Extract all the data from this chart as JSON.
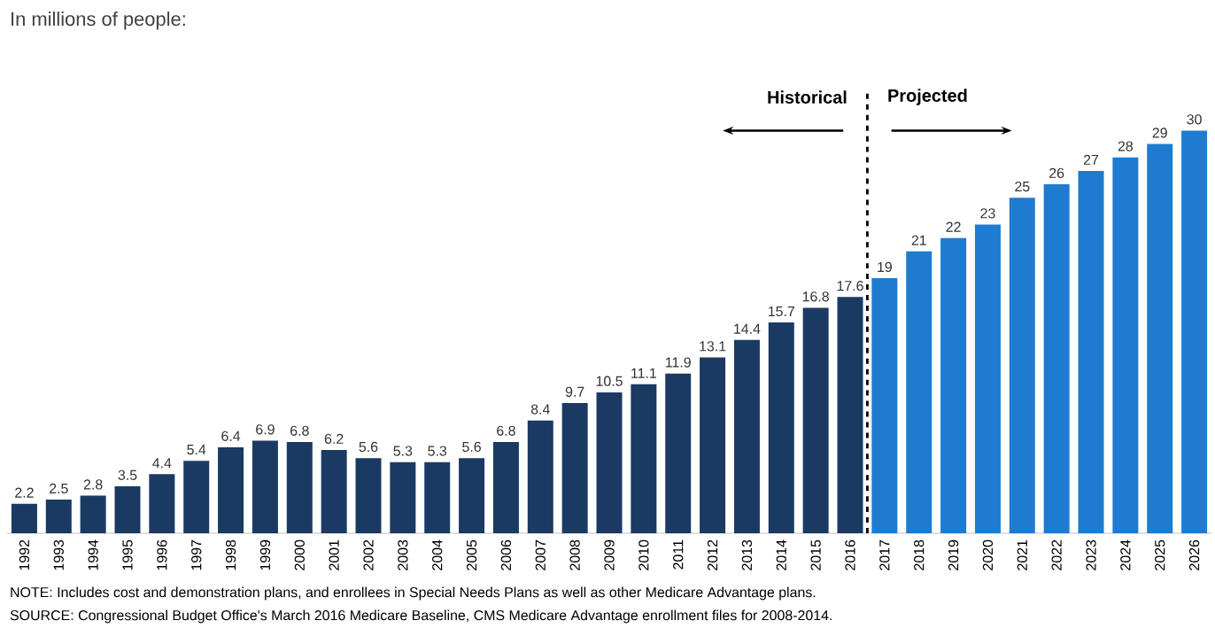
{
  "chart_data": {
    "type": "bar",
    "title": "In millions of people:",
    "x": [
      1992,
      1993,
      1994,
      1995,
      1996,
      1997,
      1998,
      1999,
      2000,
      2001,
      2002,
      2003,
      2004,
      2005,
      2006,
      2007,
      2008,
      2009,
      2010,
      2011,
      2012,
      2013,
      2014,
      2015,
      2016,
      2017,
      2018,
      2019,
      2020,
      2021,
      2022,
      2023,
      2024,
      2025,
      2026
    ],
    "values": [
      2.2,
      2.5,
      2.8,
      3.5,
      4.4,
      5.4,
      6.4,
      6.9,
      6.8,
      6.2,
      5.6,
      5.3,
      5.3,
      5.6,
      6.8,
      8.4,
      9.7,
      10.5,
      11.1,
      11.9,
      13.1,
      14.4,
      15.7,
      16.8,
      17.6,
      19,
      21,
      22,
      23,
      25,
      26,
      27,
      28,
      29,
      30
    ],
    "colors": [
      "#1b3a63",
      "#1b3a63",
      "#1b3a63",
      "#1b3a63",
      "#1b3a63",
      "#1b3a63",
      "#1b3a63",
      "#1b3a63",
      "#1b3a63",
      "#1b3a63",
      "#1b3a63",
      "#1b3a63",
      "#1b3a63",
      "#1b3a63",
      "#1b3a63",
      "#1b3a63",
      "#1b3a63",
      "#1b3a63",
      "#1b3a63",
      "#1b3a63",
      "#1b3a63",
      "#1b3a63",
      "#1b3a63",
      "#1b3a63",
      "#1b3a63",
      "#1f7bd0",
      "#1f7bd0",
      "#1f7bd0",
      "#1f7bd0",
      "#1f7bd0",
      "#1f7bd0",
      "#1f7bd0",
      "#1f7bd0",
      "#1f7bd0",
      "#1f7bd0"
    ],
    "xlim": [
      1991.5,
      2026.5
    ],
    "xticks": [
      1992,
      1993,
      1994,
      1995,
      1996,
      1997,
      1998,
      1999,
      2000,
      2001,
      2002,
      2003,
      2004,
      2005,
      2006,
      2007,
      2008,
      2009,
      2010,
      2011,
      2012,
      2013,
      2014,
      2015,
      2016,
      2017,
      2018,
      2019,
      2020,
      2021,
      2022,
      2023,
      2024,
      2025,
      2026
    ],
    "ylim": [
      0,
      33
    ],
    "tick_labels": "x",
    "data_labels": true,
    "ref_lines": [
      {
        "axis": "x",
        "value": 2016.5,
        "line_style": "dashed",
        "color": "#000000"
      }
    ],
    "annotations": [
      "Historical",
      "Projected",
      "NOTE:  Includes cost and demonstration plans, and enrollees in Special Needs Plans as well as other Medicare Advantage plans.",
      "SOURCE:  Congressional Budget Office's March 2016  Medicare Baseline, CMS Medicare Advantage enrollment files for 2008-2014."
    ]
  }
}
